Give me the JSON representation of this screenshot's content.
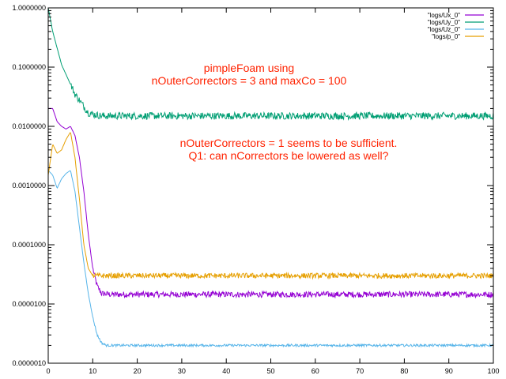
{
  "chart_data": {
    "type": "line",
    "title": "",
    "xlabel": "",
    "ylabel": "",
    "xlim": [
      0,
      100
    ],
    "ylim": [
      1e-06,
      1
    ],
    "yscale": "log",
    "grid": false,
    "legend_position": "top-right",
    "x_ticks": [
      0,
      10,
      20,
      30,
      40,
      50,
      60,
      70,
      80,
      90,
      100
    ],
    "y_ticks": [
      1e-06,
      1e-05,
      0.0001,
      0.001,
      0.01,
      0.1,
      1
    ],
    "y_tick_labels": [
      "0.0000010",
      "0.0000100",
      "0.0001000",
      "0.0010000",
      "0.0100000",
      "0.1000000",
      "1.0000000"
    ],
    "annotations": [
      "pimpleFoam using",
      "nOuterCorrectors = 3 and maxCo = 100",
      "nOuterCorrectors = 1 seems to be sufficient.",
      "Q1: can nCorrectors be lowered as well?"
    ],
    "series": [
      {
        "name": "\"logs/Ux_0\"",
        "color": "#9400d3",
        "x": [
          0,
          1,
          2,
          3,
          4,
          5,
          6,
          7,
          8,
          9,
          10,
          11,
          12,
          14,
          20,
          40,
          60,
          80,
          100
        ],
        "y": [
          0.02,
          0.02,
          0.012,
          0.01,
          0.009,
          0.01,
          0.007,
          0.003,
          0.0008,
          0.00015,
          4e-05,
          2e-05,
          1.5e-05,
          1.45e-05,
          1.45e-05,
          1.45e-05,
          1.45e-05,
          1.45e-05,
          1.45e-05
        ]
      },
      {
        "name": "\"logs/Uy_0\"",
        "color": "#009e73",
        "x": [
          0,
          1,
          3,
          6,
          9,
          10,
          12,
          20,
          30,
          40,
          50,
          60,
          70,
          80,
          90,
          100
        ],
        "y": [
          1.0,
          0.4,
          0.11,
          0.035,
          0.017,
          0.016,
          0.015,
          0.015,
          0.015,
          0.015,
          0.015,
          0.015,
          0.015,
          0.015,
          0.015,
          0.015
        ]
      },
      {
        "name": "\"logs/Uz_0\"",
        "color": "#56b4e9",
        "x": [
          0,
          1,
          2,
          3,
          4,
          5,
          6,
          7,
          8,
          9,
          10,
          11,
          12,
          13,
          14,
          20,
          40,
          60,
          80,
          100
        ],
        "y": [
          0.0018,
          0.0015,
          0.0009,
          0.0013,
          0.0016,
          0.0018,
          0.0008,
          0.0002,
          5e-05,
          1.5e-05,
          6e-06,
          3e-06,
          2.2e-06,
          2e-06,
          2e-06,
          2e-06,
          2e-06,
          2e-06,
          2e-06,
          2e-06
        ]
      },
      {
        "name": "\"logs/p_0\"",
        "color": "#e69f00",
        "x": [
          0,
          1,
          2,
          3,
          4,
          5,
          6,
          7,
          8,
          9,
          10,
          12,
          20,
          40,
          60,
          80,
          100
        ],
        "y": [
          0.0015,
          0.005,
          0.0035,
          0.004,
          0.006,
          0.008,
          0.003,
          0.0006,
          0.0001,
          4e-05,
          3e-05,
          3e-05,
          3e-05,
          3e-05,
          3e-05,
          3e-05,
          3e-05
        ]
      }
    ]
  }
}
